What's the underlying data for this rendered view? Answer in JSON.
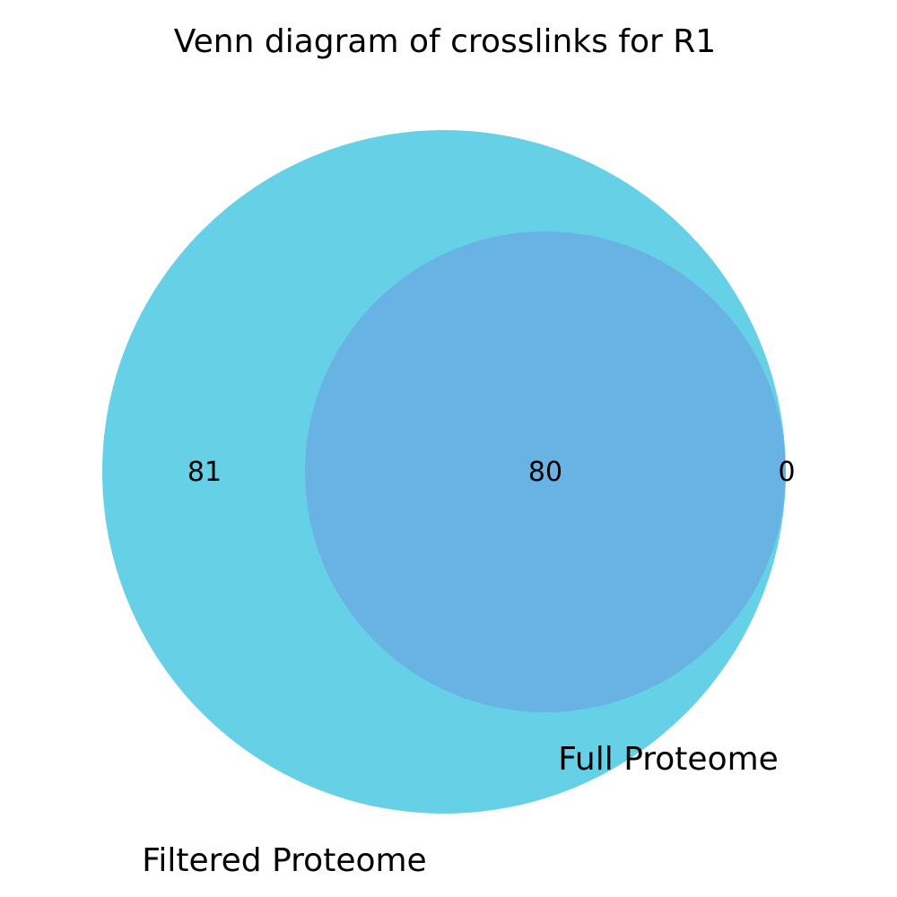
{
  "title": "Venn diagram of crosslinks for R1",
  "sets": [
    {
      "key": "filtered",
      "label": "Filtered Proteome",
      "color": "#66d0e6"
    },
    {
      "key": "full",
      "label": "Full Proteome",
      "color": "#68b2e4"
    }
  ],
  "regions": {
    "filtered_only": "81",
    "both": "80",
    "full_only": "0"
  }
}
